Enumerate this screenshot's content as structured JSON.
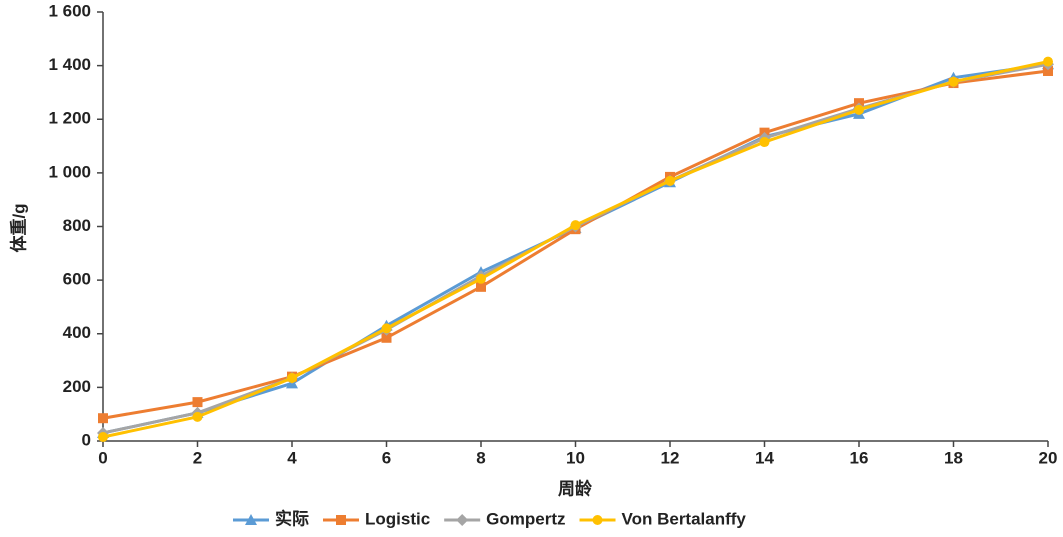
{
  "chart_data": {
    "type": "line",
    "x_label": "周龄",
    "y_label": "体重/g",
    "x": [
      0,
      2,
      4,
      6,
      8,
      10,
      12,
      14,
      16,
      18,
      20
    ],
    "xlim": [
      0,
      20
    ],
    "xticks": [
      0,
      2,
      4,
      6,
      8,
      10,
      12,
      14,
      16,
      18,
      20
    ],
    "ylim": [
      0,
      1600
    ],
    "yticks": [
      0,
      200,
      400,
      600,
      800,
      {
        "value": 1000,
        "label": "1 000"
      },
      {
        "value": 1200,
        "label": "1 200"
      },
      {
        "value": 1400,
        "label": "1 400"
      },
      {
        "value": 1600,
        "label": "1 600"
      }
    ],
    "grid": false,
    "legend": "bottom",
    "series": [
      {
        "name": "实际",
        "color": "#5b9bd5",
        "marker": "triangle",
        "values": [
          30,
          105,
          215,
          430,
          630,
          795,
          965,
          1135,
          1220,
          1355,
          1405
        ]
      },
      {
        "name": "Logistic",
        "color": "#ed7d31",
        "marker": "square",
        "values": [
          85,
          145,
          240,
          385,
          575,
          790,
          985,
          1150,
          1260,
          1335,
          1380
        ]
      },
      {
        "name": "Gompertz",
        "color": "#a5a5a5",
        "marker": "diamond",
        "values": [
          30,
          105,
          235,
          415,
          615,
          800,
          970,
          1130,
          1240,
          1340,
          1405
        ]
      },
      {
        "name": "Von Bertalanffy",
        "color": "#ffc000",
        "marker": "circle",
        "values": [
          15,
          90,
          235,
          420,
          605,
          805,
          970,
          1115,
          1235,
          1340,
          1415
        ]
      }
    ]
  }
}
